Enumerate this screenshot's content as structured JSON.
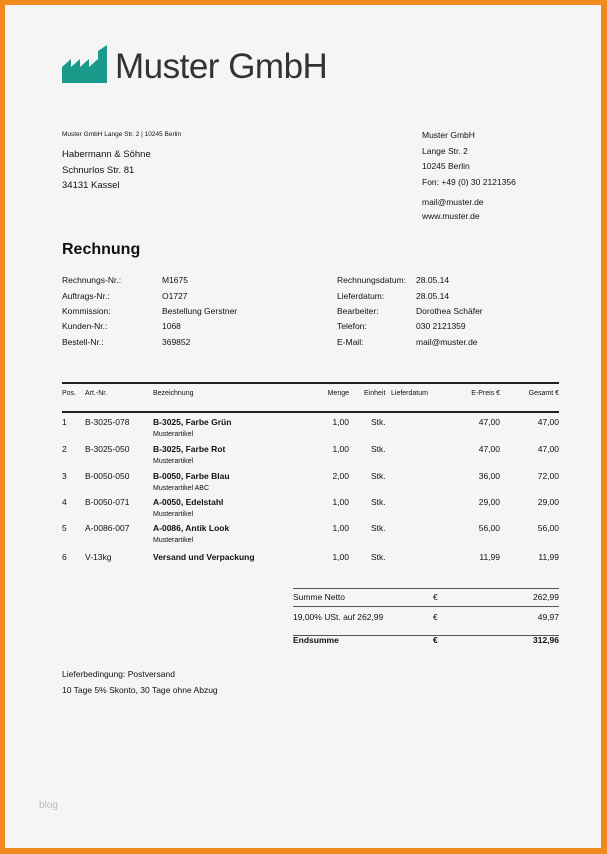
{
  "brand": {
    "name": "Muster GmbH",
    "color": "#1a9a8a",
    "border_color": "#f08a1c"
  },
  "sender_line": "Muster GmbH Lange Str. 2 | 10245 Berlin",
  "recipient": [
    "Habermann & Söhne",
    "Schnurlos Str. 81",
    "34131 Kassel"
  ],
  "company": {
    "lines": [
      "Muster GmbH",
      "Lange Str. 2",
      "10245 Berlin",
      "Fon: +49 (0) 30 2121356"
    ],
    "contact": [
      "mail@muster.de",
      "www.muster.de"
    ]
  },
  "title": "Rechnung",
  "meta_left": [
    {
      "label": "Rechnungs-Nr.:",
      "value": "M1675"
    },
    {
      "label": "Auftrags-Nr.:",
      "value": "O1727"
    },
    {
      "label": "Kommission:",
      "value": "Bestellung Gerstner"
    },
    {
      "label": "Kunden-Nr.:",
      "value": "1068"
    },
    {
      "label": "Bestell-Nr.:",
      "value": "369852"
    }
  ],
  "meta_right": [
    {
      "label": "Rechnungsdatum:",
      "value": "28.05.14"
    },
    {
      "label": "Lieferdatum:",
      "value": "28.05.14"
    },
    {
      "label": "Bearbeiter:",
      "value": "Dorothea Schäfer"
    },
    {
      "label": "Telefon:",
      "value": "030 2121359"
    },
    {
      "label": "E-Mail:",
      "value": "mail@muster.de"
    }
  ],
  "table": {
    "headers": {
      "pos": "Pos.",
      "art": "Art.-Nr.",
      "bez": "Bezeichnung",
      "menge": "Menge",
      "einheit": "Einheit",
      "lieferdatum": "Lieferdatum",
      "epreis": "E-Preis €",
      "gesamt": "Gesamt €"
    },
    "rows": [
      {
        "pos": "1",
        "art": "B-3025-078",
        "bez": "B-3025, Farbe Grün",
        "sub": "Musterartikel",
        "menge": "1,00",
        "einheit": "Stk.",
        "epreis": "47,00",
        "gesamt": "47,00"
      },
      {
        "pos": "2",
        "art": "B-3025-050",
        "bez": "B-3025, Farbe Rot",
        "sub": "Musterartikel",
        "menge": "1,00",
        "einheit": "Stk.",
        "epreis": "47,00",
        "gesamt": "47,00"
      },
      {
        "pos": "3",
        "art": "B-0050-050",
        "bez": "B-0050, Farbe Blau",
        "sub": "Musterartikel ABC",
        "menge": "2,00",
        "einheit": "Stk.",
        "epreis": "36,00",
        "gesamt": "72,00"
      },
      {
        "pos": "4",
        "art": "B-0050-071",
        "bez": "A-0050, Edelstahl",
        "sub": "Musterartikel",
        "menge": "1,00",
        "einheit": "Stk.",
        "epreis": "29,00",
        "gesamt": "29,00"
      },
      {
        "pos": "5",
        "art": "A-0086-007",
        "bez": "A-0086, Antik Look",
        "sub": "Musterartikel",
        "menge": "1,00",
        "einheit": "Stk.",
        "epreis": "56,00",
        "gesamt": "56,00"
      },
      {
        "pos": "6",
        "art": "V-13kg",
        "bez": "Versand und Verpackung",
        "sub": "",
        "menge": "1,00",
        "einheit": "Stk.",
        "epreis": "11,99",
        "gesamt": "11,99"
      }
    ]
  },
  "totals": [
    {
      "label": "Summe Netto",
      "cur": "€",
      "value": "262,99"
    },
    {
      "label": "19,00% USt. auf 262,99",
      "cur": "€",
      "value": "49,97"
    },
    {
      "label": "Endsumme",
      "cur": "€",
      "value": "312,96"
    }
  ],
  "footer": [
    "Lieferbedingung: Postversand",
    "10 Tage 5% Skonto, 30 Tage ohne Abzug"
  ],
  "watermark": "blog"
}
